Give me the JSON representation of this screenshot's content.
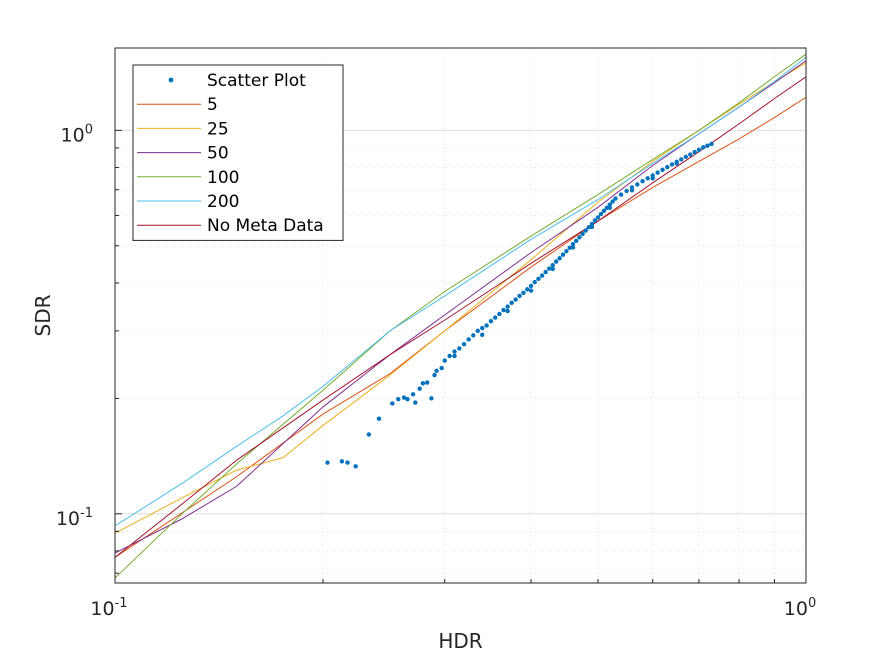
{
  "chart_data": {
    "type": "scatter",
    "xlabel": "HDR",
    "ylabel": "SDR",
    "xscale": "log",
    "yscale": "log",
    "xlim": [
      0.1,
      1.0
    ],
    "ylim": [
      0.066,
      1.64
    ],
    "grid": true,
    "minor_grid": true,
    "legend_position": "top-left",
    "x_ticks": [
      {
        "value": 0.1,
        "base": "10",
        "exp": "-1"
      },
      {
        "value": 1.0,
        "base": "10",
        "exp": "0"
      }
    ],
    "y_ticks": [
      {
        "value": 0.1,
        "base": "10",
        "exp": "-1"
      },
      {
        "value": 1.0,
        "base": "10",
        "exp": "0"
      }
    ],
    "series": [
      {
        "name": "Scatter Plot",
        "kind": "scatter",
        "color": "#0072BD",
        "points": [
          [
            0.203,
            0.136
          ],
          [
            0.213,
            0.137
          ],
          [
            0.217,
            0.136
          ],
          [
            0.223,
            0.133
          ],
          [
            0.233,
            0.161
          ],
          [
            0.241,
            0.177
          ],
          [
            0.252,
            0.194
          ],
          [
            0.257,
            0.199
          ],
          [
            0.262,
            0.201
          ],
          [
            0.265,
            0.199
          ],
          [
            0.27,
            0.205
          ],
          [
            0.272,
            0.195
          ],
          [
            0.276,
            0.212
          ],
          [
            0.279,
            0.219
          ],
          [
            0.283,
            0.22
          ],
          [
            0.287,
            0.2
          ],
          [
            0.29,
            0.23
          ],
          [
            0.292,
            0.236
          ],
          [
            0.297,
            0.24
          ],
          [
            0.3,
            0.251
          ],
          [
            0.305,
            0.258
          ],
          [
            0.31,
            0.265
          ],
          [
            0.315,
            0.27
          ],
          [
            0.32,
            0.277
          ],
          [
            0.325,
            0.285
          ],
          [
            0.33,
            0.292
          ],
          [
            0.335,
            0.3
          ],
          [
            0.34,
            0.305
          ],
          [
            0.345,
            0.31
          ],
          [
            0.35,
            0.318
          ],
          [
            0.355,
            0.325
          ],
          [
            0.36,
            0.332
          ],
          [
            0.365,
            0.34
          ],
          [
            0.37,
            0.347
          ],
          [
            0.375,
            0.355
          ],
          [
            0.38,
            0.362
          ],
          [
            0.385,
            0.37
          ],
          [
            0.39,
            0.377
          ],
          [
            0.395,
            0.385
          ],
          [
            0.4,
            0.393
          ],
          [
            0.405,
            0.402
          ],
          [
            0.41,
            0.41
          ],
          [
            0.415,
            0.418
          ],
          [
            0.42,
            0.427
          ],
          [
            0.425,
            0.436
          ],
          [
            0.43,
            0.445
          ],
          [
            0.435,
            0.455
          ],
          [
            0.44,
            0.464
          ],
          [
            0.445,
            0.474
          ],
          [
            0.45,
            0.484
          ],
          [
            0.455,
            0.494
          ],
          [
            0.46,
            0.505
          ],
          [
            0.465,
            0.515
          ],
          [
            0.47,
            0.526
          ],
          [
            0.475,
            0.537
          ],
          [
            0.48,
            0.548
          ],
          [
            0.485,
            0.559
          ],
          [
            0.49,
            0.57
          ],
          [
            0.495,
            0.582
          ],
          [
            0.5,
            0.593
          ],
          [
            0.505,
            0.605
          ],
          [
            0.51,
            0.617
          ],
          [
            0.515,
            0.628
          ],
          [
            0.52,
            0.64
          ],
          [
            0.525,
            0.652
          ],
          [
            0.53,
            0.664
          ],
          [
            0.54,
            0.68
          ],
          [
            0.55,
            0.695
          ],
          [
            0.56,
            0.71
          ],
          [
            0.57,
            0.723
          ],
          [
            0.58,
            0.737
          ],
          [
            0.59,
            0.75
          ],
          [
            0.6,
            0.763
          ],
          [
            0.61,
            0.776
          ],
          [
            0.62,
            0.789
          ],
          [
            0.63,
            0.802
          ],
          [
            0.64,
            0.815
          ],
          [
            0.65,
            0.828
          ],
          [
            0.66,
            0.84
          ],
          [
            0.67,
            0.853
          ],
          [
            0.68,
            0.865
          ],
          [
            0.69,
            0.878
          ],
          [
            0.7,
            0.89
          ],
          [
            0.71,
            0.903
          ],
          [
            0.72,
            0.912
          ],
          [
            0.73,
            0.922
          ],
          [
            0.31,
            0.258
          ],
          [
            0.34,
            0.293
          ],
          [
            0.37,
            0.338
          ],
          [
            0.4,
            0.382
          ],
          [
            0.43,
            0.435
          ],
          [
            0.46,
            0.495
          ],
          [
            0.49,
            0.56
          ],
          [
            0.52,
            0.628
          ],
          [
            0.56,
            0.698
          ],
          [
            0.6,
            0.75
          ],
          [
            0.65,
            0.82
          ]
        ]
      },
      {
        "name": "5",
        "kind": "line",
        "color": "#D95319",
        "points": [
          [
            0.1,
            0.077
          ],
          [
            0.15,
            0.125
          ],
          [
            0.2,
            0.182
          ],
          [
            0.25,
            0.232
          ],
          [
            0.3,
            0.3
          ],
          [
            0.4,
            0.44
          ],
          [
            0.5,
            0.58
          ],
          [
            0.6,
            0.71
          ],
          [
            0.7,
            0.83
          ],
          [
            0.8,
            0.95
          ],
          [
            0.9,
            1.08
          ],
          [
            1.0,
            1.22
          ]
        ]
      },
      {
        "name": "25",
        "kind": "line",
        "color": "#EDB120",
        "points": [
          [
            0.1,
            0.089
          ],
          [
            0.125,
            0.11
          ],
          [
            0.15,
            0.13
          ],
          [
            0.175,
            0.14
          ],
          [
            0.2,
            0.17
          ],
          [
            0.25,
            0.23
          ],
          [
            0.3,
            0.3
          ],
          [
            0.4,
            0.46
          ],
          [
            0.5,
            0.65
          ],
          [
            0.6,
            0.83
          ],
          [
            0.7,
            1.0
          ],
          [
            0.8,
            1.17
          ],
          [
            0.9,
            1.34
          ],
          [
            1.0,
            1.5
          ]
        ]
      },
      {
        "name": "50",
        "kind": "line",
        "color": "#7E2F8E",
        "points": [
          [
            0.1,
            0.079
          ],
          [
            0.125,
            0.097
          ],
          [
            0.15,
            0.118
          ],
          [
            0.2,
            0.19
          ],
          [
            0.25,
            0.26
          ],
          [
            0.3,
            0.33
          ],
          [
            0.4,
            0.48
          ],
          [
            0.5,
            0.63
          ],
          [
            0.6,
            0.81
          ],
          [
            0.7,
            0.98
          ],
          [
            0.8,
            1.15
          ],
          [
            0.9,
            1.33
          ],
          [
            1.0,
            1.52
          ]
        ]
      },
      {
        "name": "100",
        "kind": "line",
        "color": "#77AC30",
        "points": [
          [
            0.1,
            0.068
          ],
          [
            0.125,
            0.1
          ],
          [
            0.15,
            0.135
          ],
          [
            0.2,
            0.21
          ],
          [
            0.25,
            0.3
          ],
          [
            0.3,
            0.38
          ],
          [
            0.4,
            0.53
          ],
          [
            0.5,
            0.68
          ],
          [
            0.6,
            0.84
          ],
          [
            0.7,
            1.0
          ],
          [
            0.8,
            1.18
          ],
          [
            0.9,
            1.38
          ],
          [
            1.0,
            1.58
          ]
        ]
      },
      {
        "name": "200",
        "kind": "line",
        "color": "#4DBEEE",
        "points": [
          [
            0.1,
            0.093
          ],
          [
            0.125,
            0.12
          ],
          [
            0.15,
            0.15
          ],
          [
            0.175,
            0.18
          ],
          [
            0.2,
            0.215
          ],
          [
            0.25,
            0.3
          ],
          [
            0.3,
            0.37
          ],
          [
            0.4,
            0.52
          ],
          [
            0.5,
            0.66
          ],
          [
            0.6,
            0.82
          ],
          [
            0.7,
            0.98
          ],
          [
            0.8,
            1.15
          ],
          [
            0.9,
            1.34
          ],
          [
            1.0,
            1.55
          ]
        ]
      },
      {
        "name": "No Meta Data",
        "kind": "line",
        "color": "#A2142F",
        "points": [
          [
            0.1,
            0.077
          ],
          [
            0.125,
            0.106
          ],
          [
            0.15,
            0.138
          ],
          [
            0.2,
            0.198
          ],
          [
            0.25,
            0.26
          ],
          [
            0.3,
            0.32
          ],
          [
            0.4,
            0.45
          ],
          [
            0.5,
            0.58
          ],
          [
            0.6,
            0.73
          ],
          [
            0.7,
            0.88
          ],
          [
            0.8,
            1.04
          ],
          [
            0.9,
            1.21
          ],
          [
            1.0,
            1.38
          ]
        ]
      }
    ]
  }
}
